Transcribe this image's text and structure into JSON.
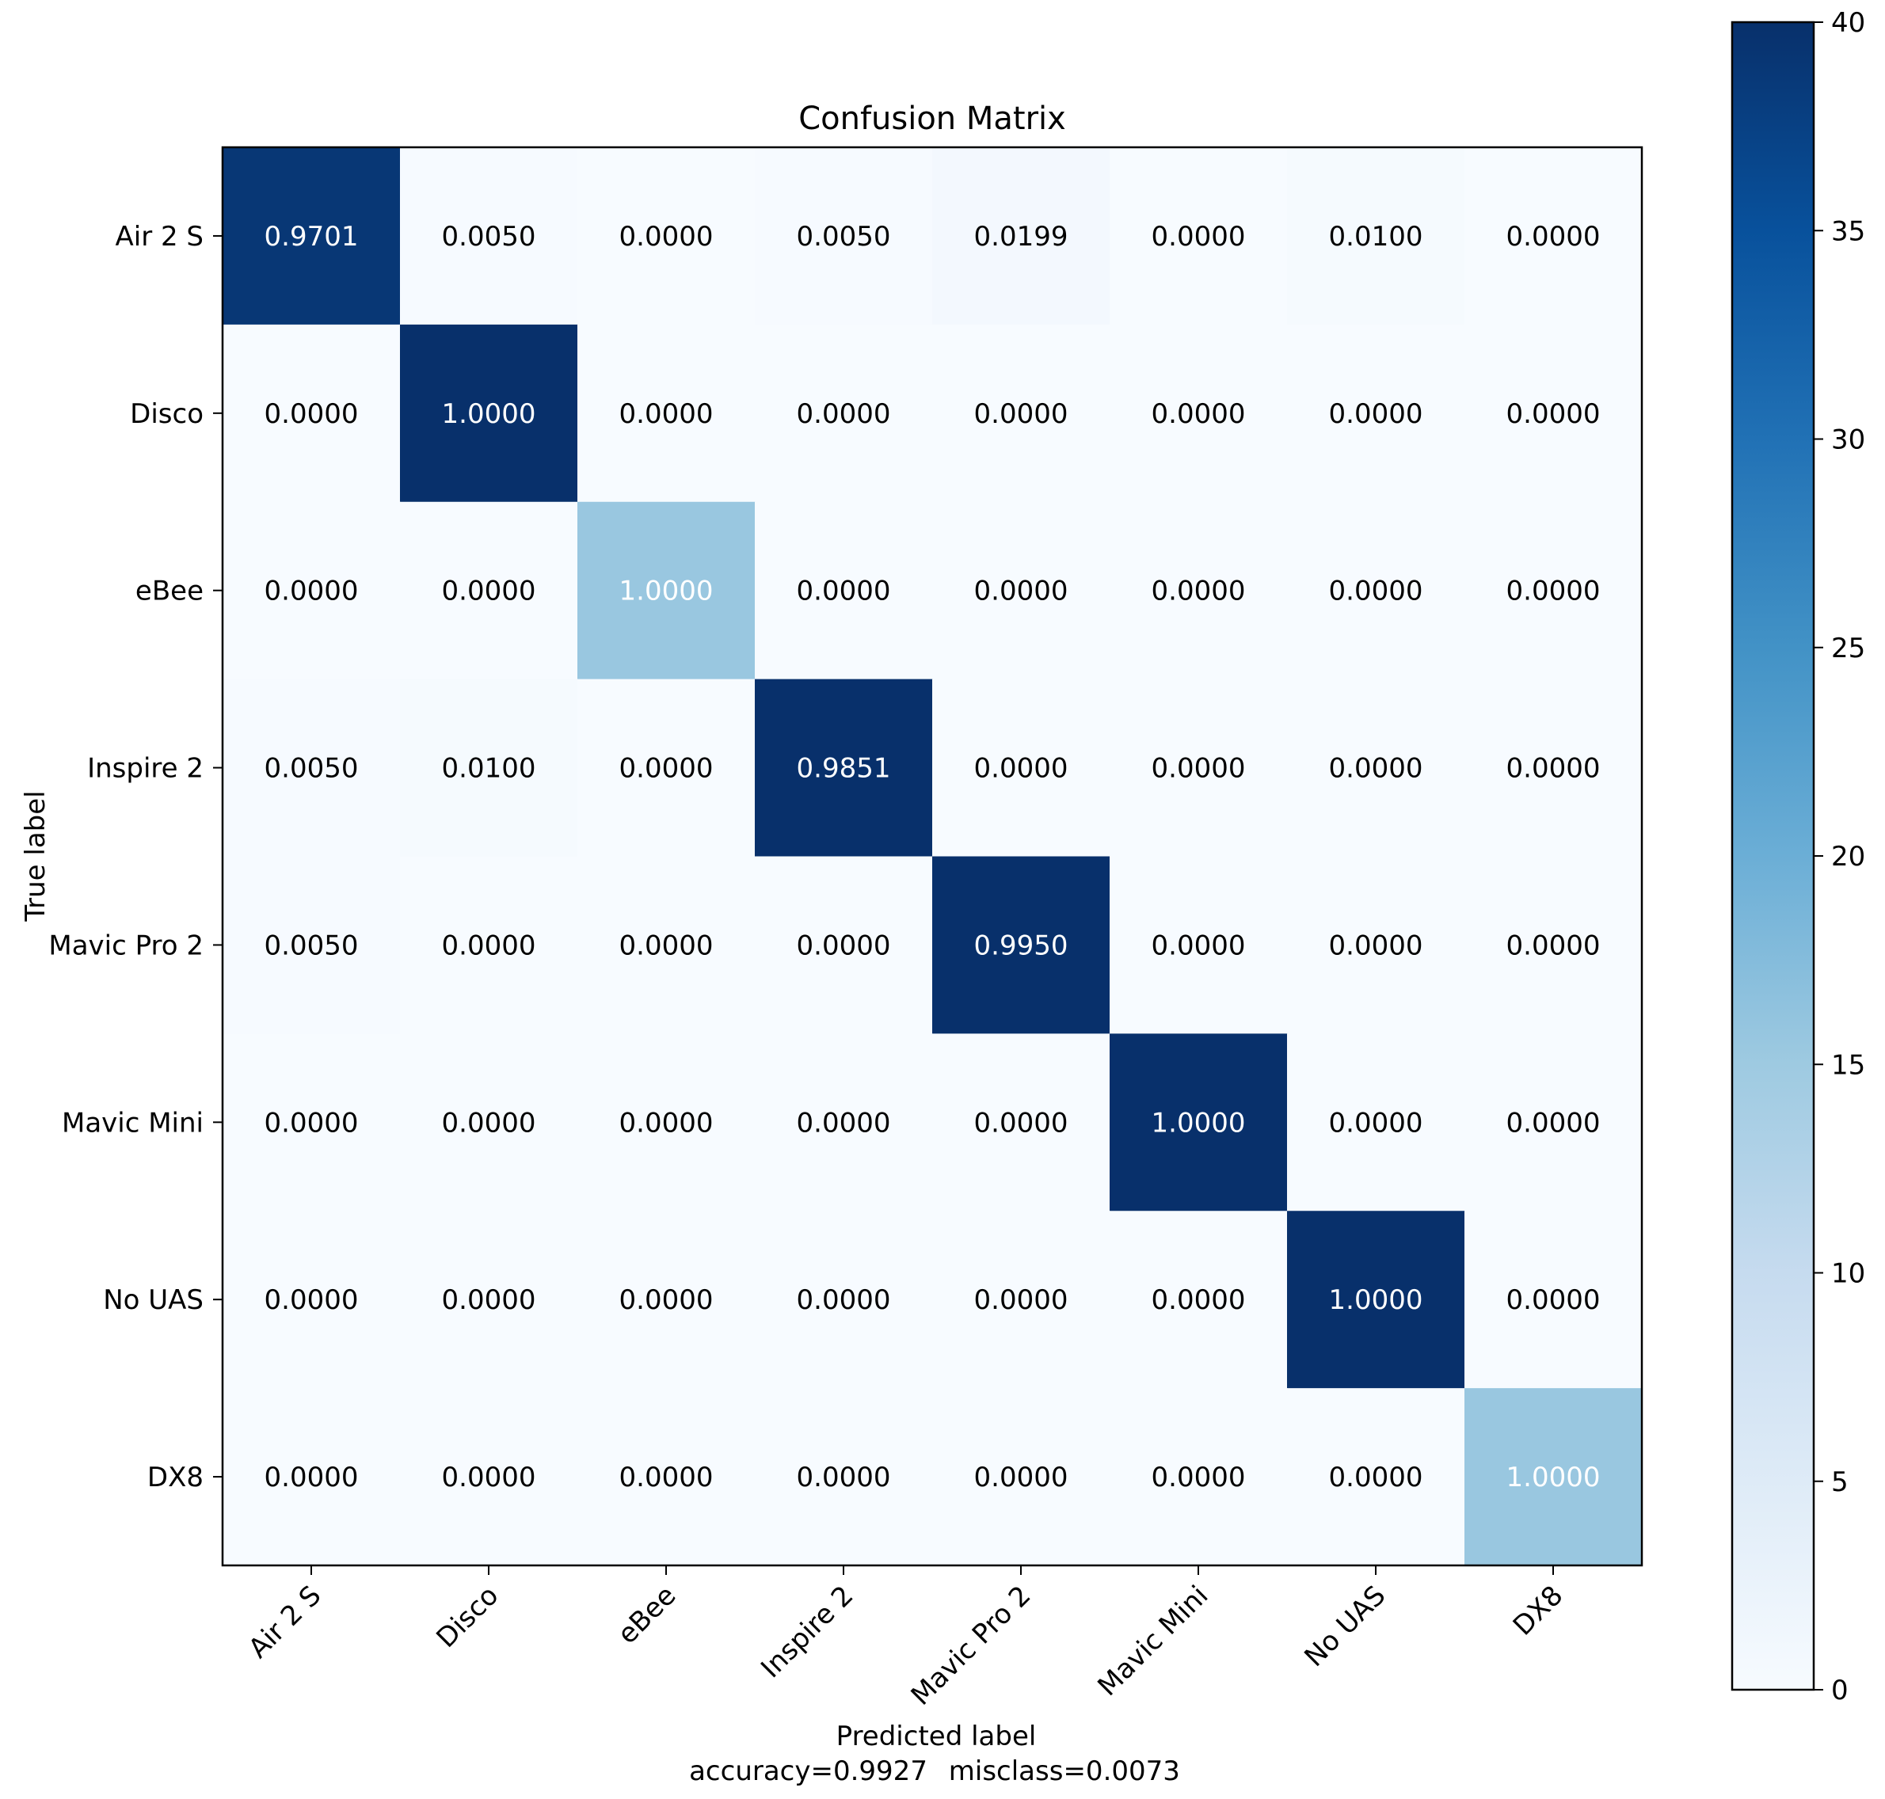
{
  "chart_data": {
    "type": "heatmap",
    "title": "Confusion Matrix",
    "xlabel": "Predicted label",
    "ylabel": "True label",
    "footer": {
      "accuracy_label": "accuracy=0.9927",
      "misclass_label": "misclass=0.0073"
    },
    "x_categories": [
      "Air 2 S",
      "Disco",
      "eBee",
      "Inspire 2",
      "Mavic Pro 2",
      "Mavic Mini",
      "No UAS",
      "DX8"
    ],
    "y_categories": [
      "Air 2 S",
      "Disco",
      "eBee",
      "Inspire 2",
      "Mavic Pro 2",
      "Mavic Mini",
      "No UAS",
      "DX8"
    ],
    "values": [
      [
        0.9701,
        0.005,
        0.0,
        0.005,
        0.0199,
        0.0,
        0.01,
        0.0
      ],
      [
        0.0,
        1.0,
        0.0,
        0.0,
        0.0,
        0.0,
        0.0,
        0.0
      ],
      [
        0.0,
        0.0,
        1.0,
        0.0,
        0.0,
        0.0,
        0.0,
        0.0
      ],
      [
        0.005,
        0.01,
        0.0,
        0.9851,
        0.0,
        0.0,
        0.0,
        0.0
      ],
      [
        0.005,
        0.0,
        0.0,
        0.0,
        0.995,
        0.0,
        0.0,
        0.0
      ],
      [
        0.0,
        0.0,
        0.0,
        0.0,
        0.0,
        1.0,
        0.0,
        0.0
      ],
      [
        0.0,
        0.0,
        0.0,
        0.0,
        0.0,
        0.0,
        1.0,
        0.0
      ],
      [
        0.0,
        0.0,
        0.0,
        0.0,
        0.0,
        0.0,
        0.0,
        1.0
      ]
    ],
    "cell_labels": [
      [
        "0.9701",
        "0.0050",
        "0.0000",
        "0.0050",
        "0.0199",
        "0.0000",
        "0.0100",
        "0.0000"
      ],
      [
        "0.0000",
        "1.0000",
        "0.0000",
        "0.0000",
        "0.0000",
        "0.0000",
        "0.0000",
        "0.0000"
      ],
      [
        "0.0000",
        "0.0000",
        "1.0000",
        "0.0000",
        "0.0000",
        "0.0000",
        "0.0000",
        "0.0000"
      ],
      [
        "0.0050",
        "0.0100",
        "0.0000",
        "0.9851",
        "0.0000",
        "0.0000",
        "0.0000",
        "0.0000"
      ],
      [
        "0.0050",
        "0.0000",
        "0.0000",
        "0.0000",
        "0.9950",
        "0.0000",
        "0.0000",
        "0.0000"
      ],
      [
        "0.0000",
        "0.0000",
        "0.0000",
        "0.0000",
        "0.0000",
        "1.0000",
        "0.0000",
        "0.0000"
      ],
      [
        "0.0000",
        "0.0000",
        "0.0000",
        "0.0000",
        "0.0000",
        "0.0000",
        "1.0000",
        "0.0000"
      ],
      [
        "0.0000",
        "0.0000",
        "0.0000",
        "0.0000",
        "0.0000",
        "0.0000",
        "0.0000",
        "1.0000"
      ]
    ],
    "cell_counts": [
      [
        39.0,
        0.2,
        0.0,
        0.2,
        0.8,
        0.0,
        0.4,
        0.0
      ],
      [
        0.0,
        40.0,
        0.0,
        0.0,
        0.0,
        0.0,
        0.0,
        0.0
      ],
      [
        0.0,
        0.0,
        15.5,
        0.0,
        0.0,
        0.0,
        0.0,
        0.0
      ],
      [
        0.2,
        0.4,
        0.0,
        40.0,
        0.0,
        0.0,
        0.0,
        0.0
      ],
      [
        0.2,
        0.0,
        0.0,
        0.0,
        40.0,
        0.0,
        0.0,
        0.0
      ],
      [
        0.0,
        0.0,
        0.0,
        0.0,
        0.0,
        40.0,
        0.0,
        0.0
      ],
      [
        0.0,
        0.0,
        0.0,
        0.0,
        0.0,
        0.0,
        40.0,
        0.0
      ],
      [
        0.0,
        0.0,
        0.0,
        0.0,
        0.0,
        0.0,
        0.0,
        15.5
      ]
    ],
    "text_colors": [
      [
        "white",
        "black",
        "black",
        "black",
        "black",
        "black",
        "black",
        "black"
      ],
      [
        "black",
        "white",
        "black",
        "black",
        "black",
        "black",
        "black",
        "black"
      ],
      [
        "black",
        "black",
        "white",
        "black",
        "black",
        "black",
        "black",
        "black"
      ],
      [
        "black",
        "black",
        "black",
        "white",
        "black",
        "black",
        "black",
        "black"
      ],
      [
        "black",
        "black",
        "black",
        "black",
        "white",
        "black",
        "black",
        "black"
      ],
      [
        "black",
        "black",
        "black",
        "black",
        "black",
        "white",
        "black",
        "black"
      ],
      [
        "black",
        "black",
        "black",
        "black",
        "black",
        "black",
        "white",
        "black"
      ],
      [
        "black",
        "black",
        "black",
        "black",
        "black",
        "black",
        "black",
        "white"
      ]
    ],
    "colorbar": {
      "range": [
        0,
        40
      ],
      "ticks": [
        0,
        5,
        10,
        15,
        20,
        25,
        30,
        35,
        40
      ],
      "tick_labels": [
        "0",
        "5",
        "10",
        "15",
        "20",
        "25",
        "30",
        "35",
        "40"
      ]
    },
    "colormap": {
      "name": "Blues",
      "stops": [
        "#f7fbff",
        "#deebf7",
        "#c6dbef",
        "#9ecae1",
        "#6baed6",
        "#4292c6",
        "#2171b5",
        "#08519c",
        "#08306b"
      ]
    }
  }
}
